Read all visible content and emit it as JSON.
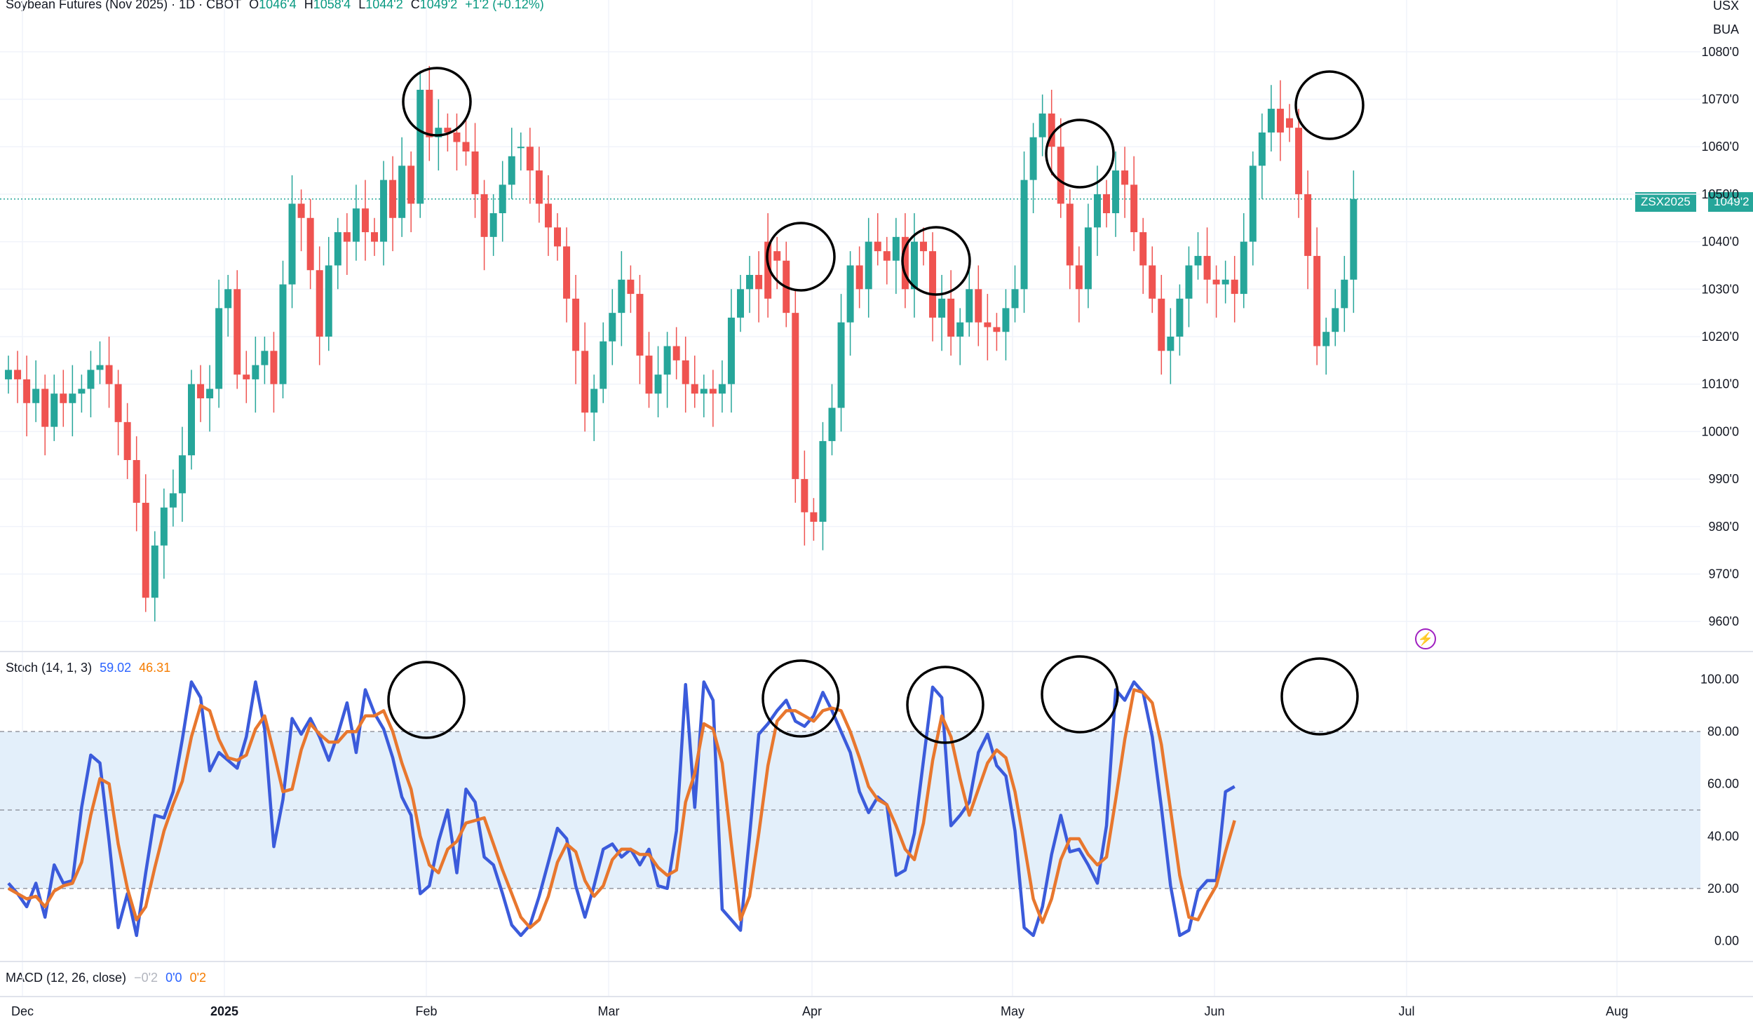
{
  "header": {
    "symbol": "Soybean Futures (Nov 2025) · 1D · CBOT",
    "open_label": "O",
    "open": "1046'4",
    "high_label": "H",
    "high": "1058'4",
    "low_label": "L",
    "low": "1044'2",
    "close_label": "C",
    "close": "1049'2",
    "change": "+1'2 (+0.12%)"
  },
  "right_tags": {
    "currency": "USX",
    "unit": "BUA"
  },
  "last_price_tag": {
    "symbol": "ZSX2025",
    "price": "1049'2"
  },
  "stoch_header": {
    "label": "Stoch (14, 1, 3)",
    "k_value": "59.02",
    "d_value": "46.31"
  },
  "macd_header": {
    "label": "MACD (12, 26, close)",
    "hist": "−0'2",
    "macd": "0'0",
    "signal": "0'2"
  },
  "colors": {
    "up": "#26a69a",
    "down": "#ef5350",
    "k_line": "#3b5bdb",
    "d_line": "#e8772e",
    "band": "#e3effa"
  },
  "icons": {
    "flash": "lightning-icon"
  },
  "chart_data": [
    {
      "type": "candlestick",
      "title": "Soybean Futures (Nov 2025)",
      "y_axis_labels": [
        "1080'0",
        "1070'0",
        "1060'0",
        "1050'0",
        "1040'0",
        "1030'0",
        "1020'0",
        "1010'0",
        "1000'0",
        "990'0",
        "980'0",
        "970'0",
        "960'0"
      ],
      "ylim": [
        955,
        1085
      ],
      "x_axis_labels": [
        "Dec",
        "2025",
        "Feb",
        "Mar",
        "Apr",
        "May",
        "Jun",
        "Jul",
        "Aug"
      ],
      "closes": [
        1013,
        1011,
        1006,
        1009,
        1001,
        1008,
        1006,
        1008,
        1009,
        1013,
        1014,
        1010,
        1002,
        994,
        985,
        965,
        976,
        984,
        987,
        995,
        1010,
        1007,
        1009,
        1026,
        1030,
        1012,
        1011,
        1014,
        1017,
        1010,
        1031,
        1048,
        1045,
        1034,
        1020,
        1035,
        1042,
        1040,
        1047,
        1042,
        1040,
        1053,
        1045,
        1056,
        1048,
        1072,
        1062,
        1064,
        1063,
        1061,
        1059,
        1050,
        1041,
        1046,
        1052,
        1058,
        1060,
        1055,
        1048,
        1043,
        1039,
        1028,
        1017,
        1004,
        1009,
        1019,
        1025,
        1032,
        1029,
        1016,
        1008,
        1012,
        1018,
        1015,
        1010,
        1008,
        1009,
        1008,
        1010,
        1024,
        1030,
        1033,
        1030,
        1028,
        1036,
        1025,
        990,
        983,
        981,
        998,
        1005,
        1023,
        1035,
        1030,
        1040,
        1038,
        1036,
        1041,
        1030,
        1040,
        1038,
        1024,
        1028,
        1020,
        1023,
        1030,
        1023,
        1022,
        1021,
        1026,
        1030,
        1053,
        1062,
        1067,
        1060,
        1048,
        1035,
        1030,
        1043,
        1050,
        1046,
        1055,
        1052,
        1042,
        1035,
        1028,
        1017,
        1020,
        1028,
        1035,
        1037,
        1032,
        1031,
        1032,
        1029,
        1040,
        1056,
        1063,
        1068,
        1063,
        1064,
        1050,
        1037,
        1018,
        1021,
        1026,
        1032,
        1049
      ],
      "opens": [
        1011,
        1013,
        1011,
        1006,
        1009,
        1001,
        1008,
        1006,
        1008,
        1009,
        1013,
        1014,
        1010,
        1002,
        994,
        985,
        965,
        976,
        984,
        987,
        995,
        1010,
        1007,
        1009,
        1026,
        1030,
        1012,
        1011,
        1014,
        1017,
        1010,
        1031,
        1048,
        1045,
        1034,
        1020,
        1035,
        1042,
        1040,
        1047,
        1042,
        1040,
        1053,
        1045,
        1056,
        1048,
        1072,
        1062,
        1064,
        1063,
        1061,
        1059,
        1050,
        1041,
        1046,
        1052,
        1060,
        1060,
        1055,
        1048,
        1043,
        1039,
        1028,
        1017,
        1004,
        1009,
        1019,
        1025,
        1032,
        1029,
        1016,
        1008,
        1012,
        1018,
        1015,
        1010,
        1008,
        1009,
        1008,
        1010,
        1024,
        1030,
        1033,
        1040,
        1038,
        1036,
        1025,
        990,
        983,
        981,
        998,
        1005,
        1023,
        1035,
        1030,
        1040,
        1038,
        1036,
        1041,
        1030,
        1040,
        1038,
        1024,
        1028,
        1020,
        1023,
        1030,
        1023,
        1022,
        1021,
        1026,
        1030,
        1053,
        1062,
        1067,
        1060,
        1048,
        1035,
        1030,
        1043,
        1050,
        1046,
        1055,
        1052,
        1042,
        1035,
        1028,
        1017,
        1020,
        1028,
        1035,
        1037,
        1032,
        1031,
        1032,
        1029,
        1040,
        1056,
        1063,
        1068,
        1066,
        1064,
        1050,
        1037,
        1018,
        1021,
        1026,
        1032,
        1046
      ]
    },
    {
      "type": "line",
      "title": "Stoch (14, 1, 3)",
      "y_axis_labels": [
        "100.00",
        "80.00",
        "60.00",
        "40.00",
        "20.00",
        "0.00"
      ],
      "ylim": [
        -5,
        105
      ],
      "bands": [
        80,
        50,
        20
      ],
      "series": [
        {
          "name": "%K",
          "values": [
            22,
            18,
            13,
            22,
            9,
            29,
            22,
            23,
            51,
            71,
            68,
            38,
            5,
            18,
            2,
            26,
            48,
            47,
            57,
            77,
            99,
            93,
            65,
            72,
            69,
            66,
            78,
            99,
            81,
            36,
            54,
            85,
            79,
            85,
            78,
            69,
            79,
            91,
            72,
            96,
            87,
            81,
            70,
            55,
            48,
            18,
            21,
            38,
            50,
            26,
            58,
            53,
            32,
            29,
            18,
            6,
            2,
            6,
            17,
            30,
            43,
            39,
            21,
            9,
            21,
            35,
            37,
            32,
            35,
            29,
            35,
            21,
            20,
            42,
            98,
            51,
            99,
            92,
            12,
            8,
            4,
            40,
            79,
            83,
            88,
            92,
            84,
            82,
            86,
            95,
            88,
            80,
            72,
            57,
            49,
            55,
            52,
            25,
            27,
            41,
            69,
            97,
            93,
            44,
            48,
            53,
            72,
            79,
            67,
            63,
            42,
            5,
            2,
            13,
            33,
            48,
            34,
            35,
            29,
            22,
            44,
            96,
            92,
            99,
            95,
            78,
            51,
            21,
            2,
            4,
            19,
            23,
            23,
            57,
            59
          ]
        },
        {
          "name": "%D",
          "values": [
            20,
            18,
            16,
            17,
            13,
            19,
            21,
            22,
            30,
            48,
            62,
            60,
            37,
            20,
            8,
            13,
            28,
            42,
            52,
            61,
            78,
            90,
            88,
            77,
            70,
            69,
            71,
            81,
            86,
            72,
            57,
            58,
            73,
            83,
            79,
            76,
            76,
            80,
            80,
            86,
            86,
            88,
            80,
            68,
            58,
            40,
            29,
            26,
            35,
            38,
            45,
            46,
            47,
            37,
            27,
            18,
            9,
            5,
            8,
            17,
            30,
            37,
            34,
            23,
            17,
            21,
            31,
            35,
            35,
            33,
            33,
            28,
            25,
            27,
            53,
            64,
            83,
            81,
            68,
            37,
            8,
            17,
            41,
            67,
            84,
            88,
            88,
            86,
            84,
            88,
            89,
            88,
            80,
            70,
            59,
            54,
            52,
            44,
            35,
            31,
            45,
            69,
            86,
            78,
            62,
            48,
            58,
            68,
            73,
            70,
            57,
            37,
            16,
            7,
            16,
            31,
            39,
            39,
            33,
            29,
            32,
            54,
            77,
            96,
            95,
            91,
            75,
            50,
            25,
            9,
            8,
            15,
            21,
            34,
            46
          ]
        }
      ]
    }
  ]
}
